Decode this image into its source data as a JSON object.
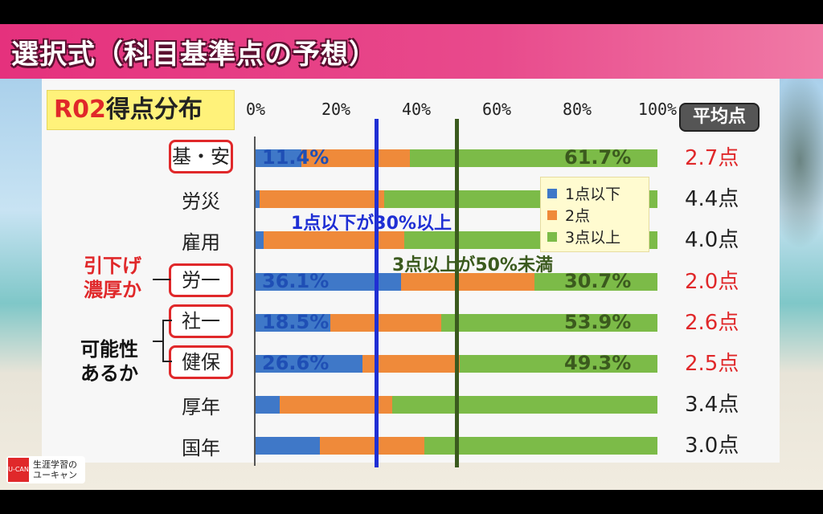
{
  "title": "選択式（科目基準点の予想）",
  "heading": {
    "prefix": "R02",
    "rest": "得点分布"
  },
  "avg_header": "平均点",
  "side_notes": {
    "lower_line1": "引下げ",
    "lower_line2": "濃厚か",
    "possible_line1": "可能性",
    "possible_line2": "あるか"
  },
  "annotations": {
    "blue_line": "1点以下が30%以上",
    "green_line": "3点以上が50%未満"
  },
  "logo": {
    "line1": "生涯学習の",
    "line2": "ユーキャン",
    "mark": "U-CAN"
  },
  "colors": {
    "blue": "#3f78c8",
    "orange": "#ef8a3a",
    "green": "#7cbb48",
    "red": "#e0282a"
  },
  "chart_data": {
    "type": "bar",
    "orientation": "horizontal",
    "stacked": true,
    "xlim": [
      0,
      100
    ],
    "x_ticks": [
      "0%",
      "20%",
      "40%",
      "60%",
      "80%",
      "100%"
    ],
    "categories": [
      "基・安",
      "労災",
      "雇用",
      "労一",
      "社一",
      "健保",
      "厚年",
      "国年"
    ],
    "highlighted": [
      true,
      false,
      false,
      true,
      true,
      true,
      false,
      false
    ],
    "series": [
      {
        "name": "1点以下",
        "values": [
          11.4,
          1,
          2,
          36.1,
          18.5,
          26.6,
          6,
          16
        ]
      },
      {
        "name": "2点",
        "values": [
          26.9,
          31,
          35,
          33.2,
          27.6,
          24.1,
          28,
          26
        ]
      },
      {
        "name": "3点以上",
        "values": [
          61.7,
          68,
          63,
          30.7,
          53.9,
          49.3,
          66,
          58
        ]
      }
    ],
    "labels_blue": [
      "11.4%",
      "",
      "",
      "36.1%",
      "18.5%",
      "26.6%",
      "",
      ""
    ],
    "labels_green": [
      "61.7%",
      "",
      "",
      "30.7%",
      "53.9%",
      "49.3%",
      "",
      ""
    ],
    "averages": [
      "2.7点",
      "4.4点",
      "4.0点",
      "2.0点",
      "2.6点",
      "2.5点",
      "3.4点",
      "3.0点"
    ],
    "average_red": [
      true,
      false,
      false,
      true,
      true,
      true,
      false,
      false
    ],
    "reference_lines": [
      {
        "x": 30,
        "color": "blue"
      },
      {
        "x": 50,
        "color": "green"
      }
    ]
  }
}
